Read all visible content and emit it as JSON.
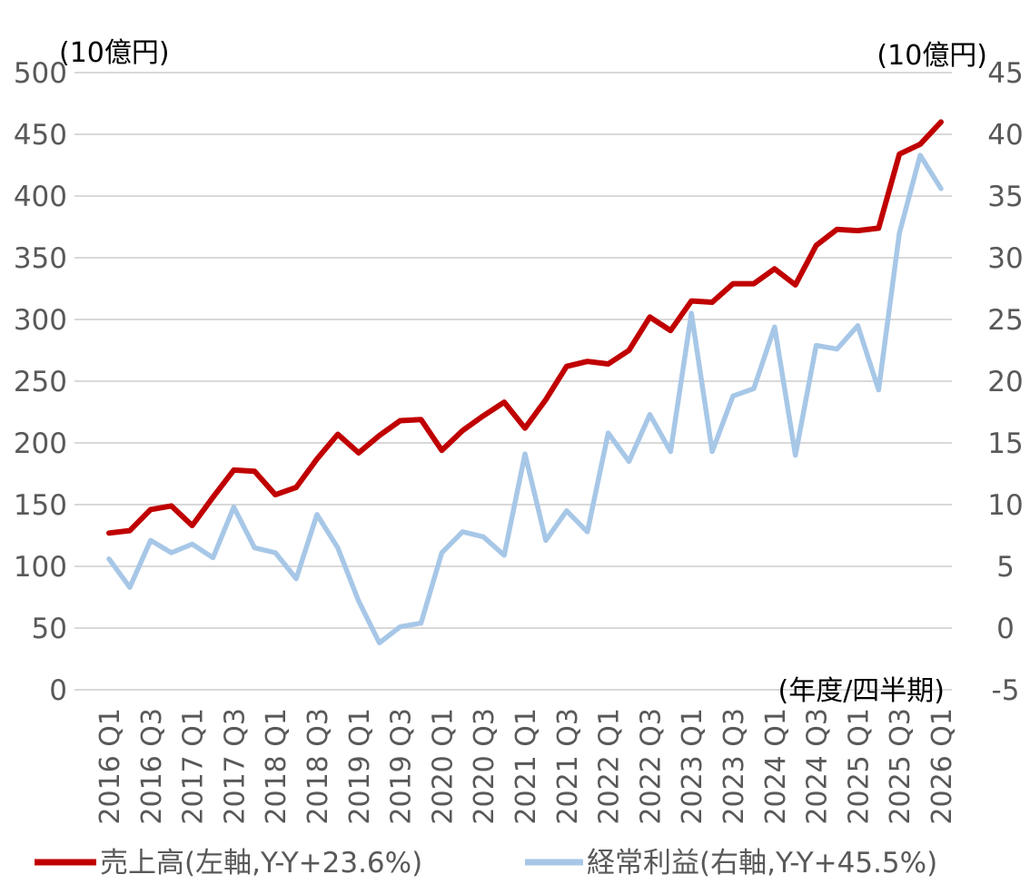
{
  "chart_data": {
    "type": "line",
    "left_unit": "(10億円)",
    "right_unit": "(10億円)",
    "x_unit": "(年度/四半期)",
    "x_tick_labels": [
      "2016 Q1",
      "2016 Q3",
      "2017 Q1",
      "2017 Q3",
      "2018 Q1",
      "2018 Q3",
      "2019 Q1",
      "2019 Q3",
      "2020 Q1",
      "2020 Q3",
      "2021 Q1",
      "2021 Q3",
      "2022 Q1",
      "2022 Q3",
      "2023 Q1",
      "2023 Q3",
      "2024 Q1",
      "2024 Q3",
      "2025 Q1",
      "2025 Q3",
      "2026 Q1"
    ],
    "x": [
      "2016 Q1",
      "2016 Q2",
      "2016 Q3",
      "2016 Q4",
      "2017 Q1",
      "2017 Q2",
      "2017 Q3",
      "2017 Q4",
      "2018 Q1",
      "2018 Q2",
      "2018 Q3",
      "2018 Q4",
      "2019 Q1",
      "2019 Q2",
      "2019 Q3",
      "2019 Q4",
      "2020 Q1",
      "2020 Q2",
      "2020 Q3",
      "2020 Q4",
      "2021 Q1",
      "2021 Q2",
      "2021 Q3",
      "2021 Q4",
      "2022 Q1",
      "2022 Q2",
      "2022 Q3",
      "2022 Q4",
      "2023 Q1",
      "2023 Q2",
      "2023 Q3",
      "2023 Q4",
      "2024 Q1",
      "2024 Q2",
      "2024 Q3",
      "2024 Q4",
      "2025 Q1",
      "2025 Q2",
      "2025 Q3",
      "2025 Q4",
      "2026 Q1"
    ],
    "y_left_ticks": [
      "0",
      "50",
      "100",
      "150",
      "200",
      "250",
      "300",
      "350",
      "400",
      "450",
      "500"
    ],
    "y_right_ticks": [
      "-5",
      "0",
      "5",
      "10",
      "15",
      "20",
      "25",
      "30",
      "35",
      "40",
      "45"
    ],
    "ylim_left": [
      0,
      500
    ],
    "ylim_right": [
      -5,
      45
    ],
    "grid": true,
    "legend_position": "bottom",
    "series": [
      {
        "name": "売上高(左軸,Y-Y+23.6%)",
        "axis": "left",
        "color": "#C00000",
        "values": [
          127,
          129,
          146,
          149,
          133,
          156,
          178,
          177,
          158,
          164,
          187,
          207,
          192,
          206,
          218,
          219,
          194,
          210,
          222,
          233,
          212,
          235,
          262,
          266,
          264,
          275,
          302,
          291,
          315,
          314,
          329,
          329,
          341,
          328,
          360,
          373,
          372,
          374,
          434,
          442,
          460
        ]
      },
      {
        "name": "経常利益(右軸,Y-Y+45.5%)",
        "axis": "right",
        "color": "#A7C7E7",
        "values": [
          5.6,
          3.3,
          7.1,
          6.1,
          6.8,
          5.7,
          9.8,
          6.5,
          6.1,
          4.0,
          9.2,
          6.5,
          2.2,
          -1.2,
          0.1,
          0.4,
          6.1,
          7.8,
          7.4,
          5.9,
          14.1,
          7.1,
          9.5,
          7.8,
          15.8,
          13.5,
          17.3,
          14.3,
          25.5,
          14.3,
          18.8,
          19.4,
          24.4,
          14.0,
          22.9,
          22.6,
          24.5,
          19.3,
          32.0,
          38.3,
          35.6
        ]
      }
    ]
  }
}
